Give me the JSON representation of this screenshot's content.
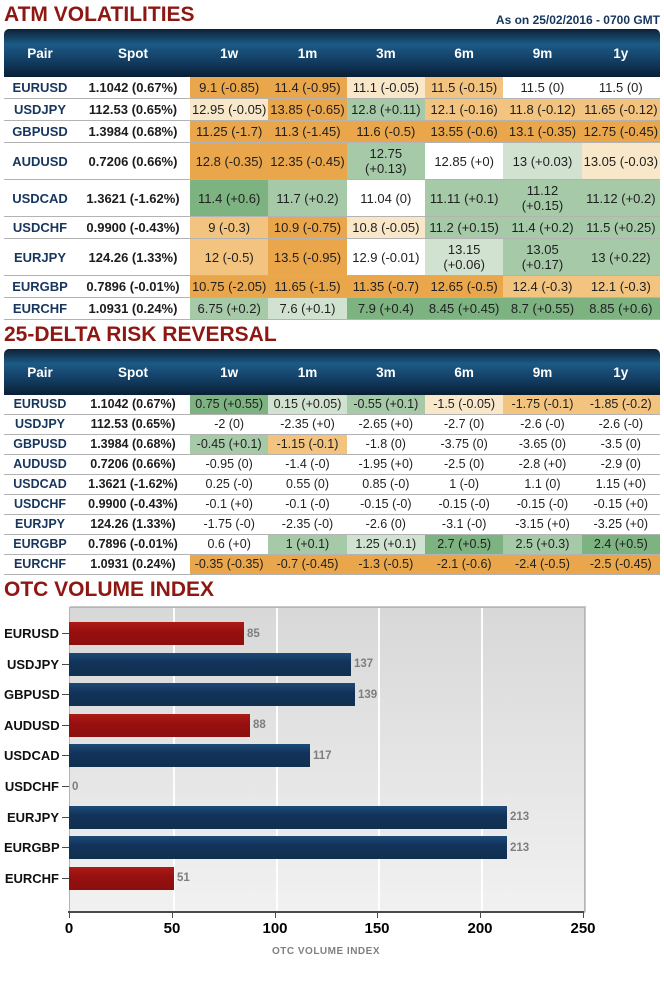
{
  "colors": {
    "section_title": "#8e1712",
    "navy_text": "#17365d",
    "heat": {
      "o3": "#eaa64a",
      "o2": "#f2c480",
      "o1": "#f9e7c9",
      "w": "#ffffff",
      "g1": "#d2e2d0",
      "g2": "#a6c9a8",
      "g3": "#7db281"
    },
    "bar_navy": "#12335a",
    "bar_red": "#971010"
  },
  "atm": {
    "title": "ATM VOLATILITIES",
    "timestamp": "As on 25/02/2016 - 0700 GMT",
    "columns": [
      "Pair",
      "Spot",
      "1w",
      "1m",
      "3m",
      "6m",
      "9m",
      "1y"
    ],
    "rows": [
      {
        "pair": "EURUSD",
        "spot": "1.1042 (0.67%)",
        "cells": [
          [
            "9.1 (-0.85)",
            "o3"
          ],
          [
            "11.4 (-0.95)",
            "o3"
          ],
          [
            "11.1 (-0.05)",
            "o1"
          ],
          [
            "11.5 (-0.15)",
            "o2"
          ],
          [
            "11.5 (0)",
            "w"
          ],
          [
            "11.5 (0)",
            "w"
          ]
        ]
      },
      {
        "pair": "USDJPY",
        "spot": "112.53 (0.65%)",
        "cells": [
          [
            "12.95 (-0.05)",
            "o1"
          ],
          [
            "13.85 (-0.65)",
            "o3"
          ],
          [
            "12.8 (+0.11)",
            "g2"
          ],
          [
            "12.1 (-0.16)",
            "o2"
          ],
          [
            "11.8 (-0.12)",
            "o2"
          ],
          [
            "11.65 (-0.12)",
            "o2"
          ]
        ]
      },
      {
        "pair": "GBPUSD",
        "spot": "1.3984 (0.68%)",
        "cells": [
          [
            "11.25 (-1.7)",
            "o3"
          ],
          [
            "11.3 (-1.45)",
            "o3"
          ],
          [
            "11.6 (-0.5)",
            "o3"
          ],
          [
            "13.55 (-0.6)",
            "o3"
          ],
          [
            "13.1 (-0.35)",
            "o3"
          ],
          [
            "12.75 (-0.45)",
            "o3"
          ]
        ]
      },
      {
        "pair": "AUDUSD",
        "spot": "0.7206 (0.66%)",
        "cells": [
          [
            "12.8 (-0.35)",
            "o3"
          ],
          [
            "12.35 (-0.45)",
            "o3"
          ],
          [
            "12.75 (+0.13)",
            "g2"
          ],
          [
            "12.85 (+0)",
            "w"
          ],
          [
            "13 (+0.03)",
            "g1"
          ],
          [
            "13.05 (-0.03)",
            "o1"
          ]
        ]
      },
      {
        "pair": "USDCAD",
        "spot": "1.3621 (-1.62%)",
        "cells": [
          [
            "11.4 (+0.6)",
            "g3"
          ],
          [
            "11.7 (+0.2)",
            "g2"
          ],
          [
            "11.04 (0)",
            "w"
          ],
          [
            "11.11 (+0.1)",
            "g2"
          ],
          [
            "11.12 (+0.15)",
            "g2"
          ],
          [
            "11.12 (+0.2)",
            "g2"
          ]
        ]
      },
      {
        "pair": "USDCHF",
        "spot": "0.9900 (-0.43%)",
        "cells": [
          [
            "9 (-0.3)",
            "o2"
          ],
          [
            "10.9 (-0.75)",
            "o3"
          ],
          [
            "10.8 (-0.05)",
            "o1"
          ],
          [
            "11.2 (+0.15)",
            "g2"
          ],
          [
            "11.4 (+0.2)",
            "g2"
          ],
          [
            "11.5 (+0.25)",
            "g2"
          ]
        ]
      },
      {
        "pair": "EURJPY",
        "spot": "124.26 (1.33%)",
        "cells": [
          [
            "12 (-0.5)",
            "o2"
          ],
          [
            "13.5 (-0.95)",
            "o3"
          ],
          [
            "12.9 (-0.01)",
            "w"
          ],
          [
            "13.15 (+0.06)",
            "g1"
          ],
          [
            "13.05 (+0.17)",
            "g2"
          ],
          [
            "13 (+0.22)",
            "g2"
          ]
        ]
      },
      {
        "pair": "EURGBP",
        "spot": "0.7896 (-0.01%)",
        "cells": [
          [
            "10.75 (-2.05)",
            "o3"
          ],
          [
            "11.65 (-1.5)",
            "o3"
          ],
          [
            "11.35 (-0.7)",
            "o3"
          ],
          [
            "12.65 (-0.5)",
            "o3"
          ],
          [
            "12.4 (-0.3)",
            "o2"
          ],
          [
            "12.1 (-0.3)",
            "o2"
          ]
        ]
      },
      {
        "pair": "EURCHF",
        "spot": "1.0931 (0.24%)",
        "cells": [
          [
            "6.75 (+0.2)",
            "g2"
          ],
          [
            "7.6 (+0.1)",
            "g1"
          ],
          [
            "7.9 (+0.4)",
            "g3"
          ],
          [
            "8.45 (+0.45)",
            "g3"
          ],
          [
            "8.7 (+0.55)",
            "g3"
          ],
          [
            "8.85 (+0.6)",
            "g3"
          ]
        ]
      }
    ]
  },
  "rr": {
    "title": "25-DELTA RISK REVERSAL",
    "columns": [
      "Pair",
      "Spot",
      "1w",
      "1m",
      "3m",
      "6m",
      "9m",
      "1y"
    ],
    "rows": [
      {
        "pair": "EURUSD",
        "spot": "1.1042 (0.67%)",
        "cells": [
          [
            "0.75 (+0.55)",
            "g3"
          ],
          [
            "0.15 (+0.05)",
            "g1"
          ],
          [
            "-0.55 (+0.1)",
            "g2"
          ],
          [
            "-1.5 (-0.05)",
            "o1"
          ],
          [
            "-1.75 (-0.1)",
            "o2"
          ],
          [
            "-1.85 (-0.2)",
            "o2"
          ]
        ]
      },
      {
        "pair": "USDJPY",
        "spot": "112.53 (0.65%)",
        "cells": [
          [
            "-2 (0)",
            "w"
          ],
          [
            "-2.35 (+0)",
            "w"
          ],
          [
            "-2.65 (+0)",
            "w"
          ],
          [
            "-2.7 (0)",
            "w"
          ],
          [
            "-2.6 (-0)",
            "w"
          ],
          [
            "-2.6 (-0)",
            "w"
          ]
        ]
      },
      {
        "pair": "GBPUSD",
        "spot": "1.3984 (0.68%)",
        "cells": [
          [
            "-0.45 (+0.1)",
            "g2"
          ],
          [
            "-1.15 (-0.1)",
            "o2"
          ],
          [
            "-1.8 (0)",
            "w"
          ],
          [
            "-3.75 (0)",
            "w"
          ],
          [
            "-3.65 (0)",
            "w"
          ],
          [
            "-3.5 (0)",
            "w"
          ]
        ]
      },
      {
        "pair": "AUDUSD",
        "spot": "0.7206 (0.66%)",
        "cells": [
          [
            "-0.95 (0)",
            "w"
          ],
          [
            "-1.4 (-0)",
            "w"
          ],
          [
            "-1.95 (+0)",
            "w"
          ],
          [
            "-2.5 (0)",
            "w"
          ],
          [
            "-2.8 (+0)",
            "w"
          ],
          [
            "-2.9 (0)",
            "w"
          ]
        ]
      },
      {
        "pair": "USDCAD",
        "spot": "1.3621 (-1.62%)",
        "cells": [
          [
            "0.25 (-0)",
            "w"
          ],
          [
            "0.55 (0)",
            "w"
          ],
          [
            "0.85 (-0)",
            "w"
          ],
          [
            "1 (-0)",
            "w"
          ],
          [
            "1.1 (0)",
            "w"
          ],
          [
            "1.15 (+0)",
            "w"
          ]
        ]
      },
      {
        "pair": "USDCHF",
        "spot": "0.9900 (-0.43%)",
        "cells": [
          [
            "-0.1 (+0)",
            "w"
          ],
          [
            "-0.1 (-0)",
            "w"
          ],
          [
            "-0.15 (-0)",
            "w"
          ],
          [
            "-0.15 (-0)",
            "w"
          ],
          [
            "-0.15 (-0)",
            "w"
          ],
          [
            "-0.15 (+0)",
            "w"
          ]
        ]
      },
      {
        "pair": "EURJPY",
        "spot": "124.26 (1.33%)",
        "cells": [
          [
            "-1.75 (-0)",
            "w"
          ],
          [
            "-2.35 (-0)",
            "w"
          ],
          [
            "-2.6 (0)",
            "w"
          ],
          [
            "-3.1 (-0)",
            "w"
          ],
          [
            "-3.15 (+0)",
            "w"
          ],
          [
            "-3.25 (+0)",
            "w"
          ]
        ]
      },
      {
        "pair": "EURGBP",
        "spot": "0.7896 (-0.01%)",
        "cells": [
          [
            "0.6 (+0)",
            "w"
          ],
          [
            "1 (+0.1)",
            "g2"
          ],
          [
            "1.25 (+0.1)",
            "g1"
          ],
          [
            "2.7 (+0.5)",
            "g3"
          ],
          [
            "2.5 (+0.3)",
            "g2"
          ],
          [
            "2.4 (+0.5)",
            "g3"
          ]
        ]
      },
      {
        "pair": "EURCHF",
        "spot": "1.0931 (0.24%)",
        "cells": [
          [
            "-0.35 (-0.35)",
            "o3"
          ],
          [
            "-0.7 (-0.45)",
            "o3"
          ],
          [
            "-1.3 (-0.5)",
            "o3"
          ],
          [
            "-2.1 (-0.6)",
            "o3"
          ],
          [
            "-2.4 (-0.5)",
            "o3"
          ],
          [
            "-2.5 (-0.45)",
            "o3"
          ]
        ]
      }
    ]
  },
  "otc": {
    "title": "OTC VOLUME INDEX"
  },
  "chart_data": {
    "type": "bar",
    "orientation": "horizontal",
    "title": "OTC VOLUME INDEX",
    "categories": [
      "EURUSD",
      "USDJPY",
      "GBPUSD",
      "AUDUSD",
      "USDCAD",
      "USDCHF",
      "EURJPY",
      "EURGBP",
      "EURCHF"
    ],
    "values": [
      85,
      137,
      139,
      88,
      117,
      0,
      213,
      213,
      51
    ],
    "bar_colors": [
      "red",
      "navy",
      "navy",
      "red",
      "navy",
      "navy",
      "navy",
      "navy",
      "red"
    ],
    "data_labels": [
      "85",
      "137",
      "139",
      "88",
      "117",
      "0",
      "213",
      "213",
      "51"
    ],
    "xlabel": "OTC VOLUME INDEX",
    "xlim": [
      0,
      250
    ],
    "xticks": [
      0,
      50,
      100,
      150,
      200,
      250
    ],
    "grid": "vertical"
  }
}
